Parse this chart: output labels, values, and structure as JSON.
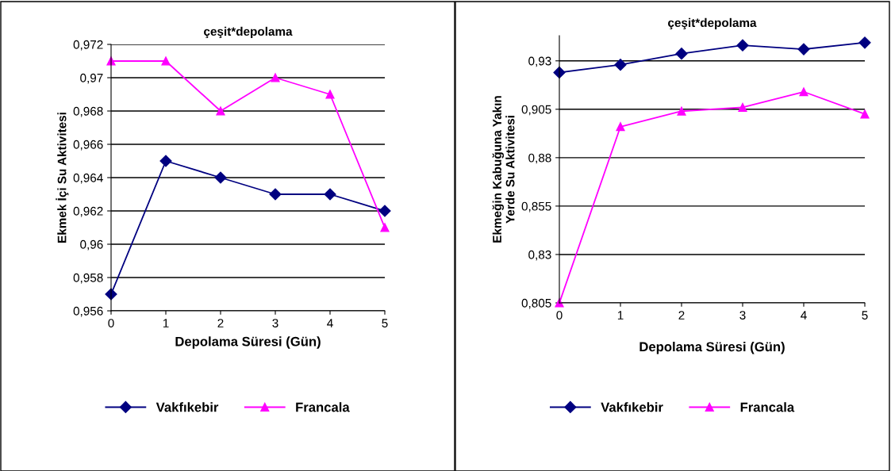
{
  "chart_data": [
    {
      "type": "line",
      "title": "çeşit*depolama",
      "xlabel": "Depolama Süresi (Gün)",
      "ylabel": "Ekmek İçi Su Aktivitesi",
      "categories": [
        "0",
        "1",
        "2",
        "3",
        "4",
        "5"
      ],
      "series": [
        {
          "name": "Vakfıkebir",
          "color": "#000080",
          "marker": "diamond",
          "values": [
            0.957,
            0.965,
            0.964,
            0.963,
            0.963,
            0.962
          ]
        },
        {
          "name": "Francala",
          "color": "#ff00ff",
          "marker": "triangle",
          "values": [
            0.971,
            0.971,
            0.968,
            0.97,
            0.969,
            0.961
          ]
        }
      ],
      "ylim": [
        0.956,
        0.972
      ],
      "yticks": [
        {
          "value": 0.956,
          "label": "0,956"
        },
        {
          "value": 0.958,
          "label": "0,958"
        },
        {
          "value": 0.96,
          "label": "0,96"
        },
        {
          "value": 0.962,
          "label": "0,962"
        },
        {
          "value": 0.964,
          "label": "0,964"
        },
        {
          "value": 0.966,
          "label": "0,966"
        },
        {
          "value": 0.968,
          "label": "0,968"
        },
        {
          "value": 0.97,
          "label": "0,97"
        },
        {
          "value": 0.972,
          "label": "0,972"
        }
      ],
      "grid": "y",
      "legend": "bottom"
    },
    {
      "type": "line",
      "title": "çeşit*depolama",
      "xlabel": "Depolama Süresi (Gün)",
      "ylabel": "Ekmeğin Kabuğuna Yakın\nYerde Su Aktivitesi",
      "categories": [
        "0",
        "1",
        "2",
        "3",
        "4",
        "5"
      ],
      "series": [
        {
          "name": "Vakfıkebir",
          "color": "#000080",
          "marker": "diamond",
          "values": [
            0.924,
            0.928,
            0.9337,
            0.938,
            0.936,
            0.9394
          ]
        },
        {
          "name": "Francala",
          "color": "#ff00ff",
          "marker": "triangle",
          "values": [
            0.805,
            0.896,
            0.904,
            0.906,
            0.914,
            0.9025
          ]
        }
      ],
      "ylim": [
        0.805,
        0.943
      ],
      "yticks": [
        {
          "value": 0.805,
          "label": "0,805"
        },
        {
          "value": 0.83,
          "label": "0,83"
        },
        {
          "value": 0.855,
          "label": "0,855"
        },
        {
          "value": 0.88,
          "label": "0,88"
        },
        {
          "value": 0.905,
          "label": "0,905"
        },
        {
          "value": 0.93,
          "label": "0,93"
        }
      ],
      "grid": "y",
      "legend": "bottom"
    }
  ]
}
